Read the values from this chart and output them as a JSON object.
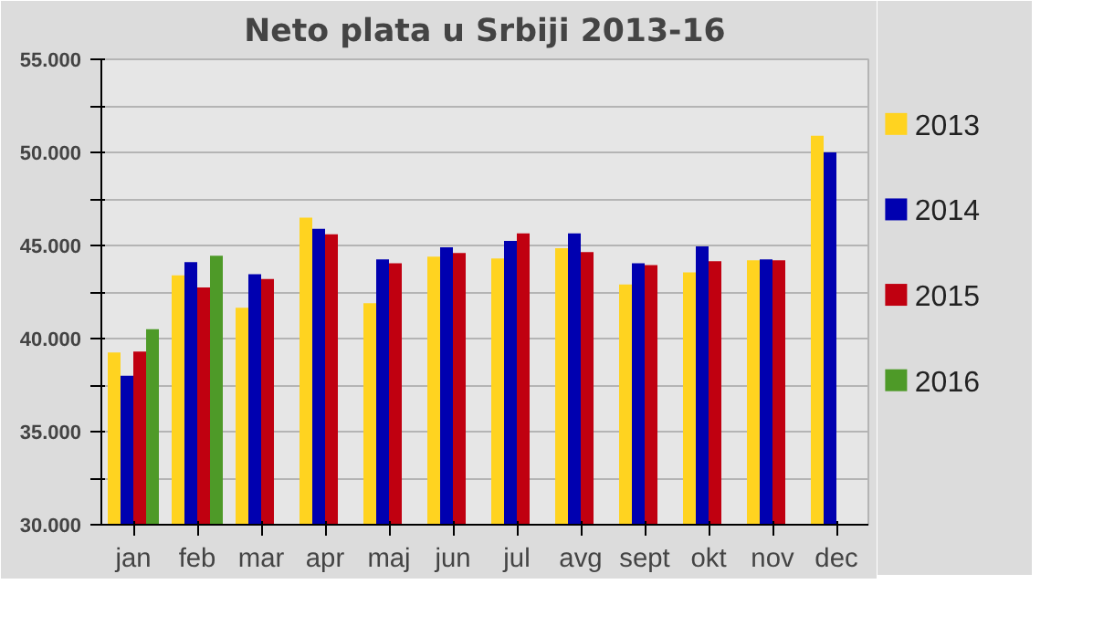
{
  "chart_data": {
    "type": "bar",
    "title": "Neto plata u Srbiji 2013-16",
    "categories": [
      "jan",
      "feb",
      "mar",
      "apr",
      "maj",
      "jun",
      "jul",
      "avg",
      "sept",
      "okt",
      "nov",
      "dec"
    ],
    "series": [
      {
        "name": "2013",
        "color": "#ffd320",
        "values": [
          39250,
          43400,
          41650,
          46500,
          41900,
          44400,
          44300,
          44850,
          42900,
          43550,
          44200,
          50900
        ]
      },
      {
        "name": "2014",
        "color": "#0000b0",
        "values": [
          38000,
          44100,
          43450,
          45900,
          44250,
          44900,
          45250,
          45650,
          44050,
          44950,
          44250,
          50000
        ]
      },
      {
        "name": "2015",
        "color": "#c00010",
        "values": [
          39300,
          42750,
          43200,
          45600,
          44050,
          44600,
          45650,
          44650,
          43950,
          44150,
          44200,
          null
        ]
      },
      {
        "name": "2016",
        "color": "#4e9a28",
        "values": [
          40500,
          44450,
          null,
          null,
          null,
          null,
          null,
          null,
          null,
          null,
          null,
          null
        ]
      }
    ],
    "ylim": [
      30000,
      55000
    ],
    "yticks": [
      {
        "value": 30000,
        "label": "30.000"
      },
      {
        "value": 32500,
        "label": null
      },
      {
        "value": 35000,
        "label": "35.000"
      },
      {
        "value": 37500,
        "label": null
      },
      {
        "value": 40000,
        "label": "40.000"
      },
      {
        "value": 42500,
        "label": null
      },
      {
        "value": 45000,
        "label": "45.000"
      },
      {
        "value": 47500,
        "label": null
      },
      {
        "value": 50000,
        "label": "50.000"
      },
      {
        "value": 52500,
        "label": null
      },
      {
        "value": 55000,
        "label": "55.000"
      }
    ],
    "grid": "y",
    "legend": "right"
  }
}
